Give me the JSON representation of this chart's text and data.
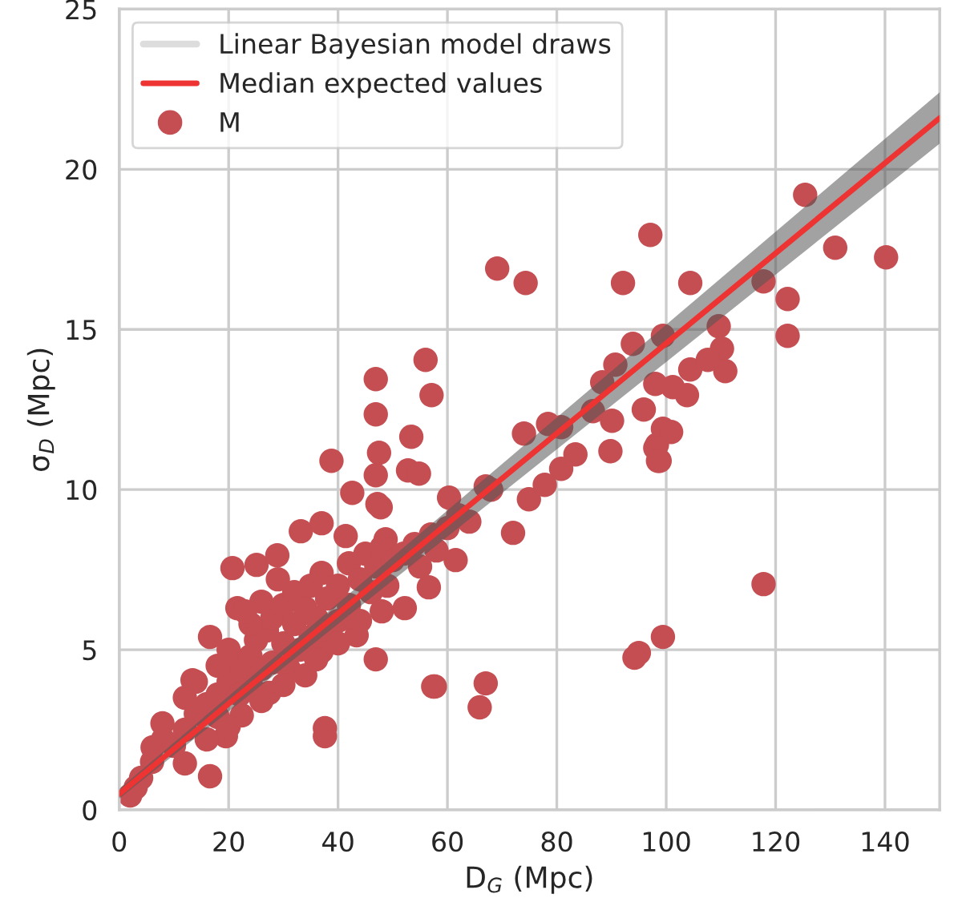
{
  "chart_data": {
    "type": "scatter",
    "xlabel": "D$_{G}$ (Mpc)",
    "ylabel": "σ$_{D}$ (Mpc)",
    "xlim": [
      0,
      150
    ],
    "ylim": [
      0,
      25
    ],
    "xticks": [
      0,
      20,
      40,
      60,
      80,
      100,
      120,
      140
    ],
    "yticks": [
      0,
      5,
      10,
      15,
      20,
      25
    ],
    "grid": true,
    "legend": "top left",
    "series": [
      {
        "name": "Linear Bayesian model draws",
        "type": "line",
        "color": "#555555",
        "x": [
          0,
          150
        ],
        "values": [
          null,
          null
        ],
        "lower": [
          0.35,
          20.8
        ],
        "upper": [
          0.65,
          22.4
        ]
      },
      {
        "name": "Median expected values",
        "type": "line",
        "color": "#ee3333",
        "x": [
          0,
          150
        ],
        "values": [
          0.5,
          21.6
        ]
      },
      {
        "name": "M",
        "color": "#c44e52",
        "marker": "circle",
        "x": [
          69.1,
          74.3,
          97.1,
          92.1,
          104.4,
          125.4,
          130.9,
          140.2,
          117.8,
          122.2,
          122.2,
          117.8,
          99.4,
          95,
          94.2,
          57.7,
          67,
          65.9,
          37.6,
          37.6,
          38.8,
          46.9,
          56,
          46.9,
          57.1,
          53.4,
          47.5,
          52.8,
          54.8,
          46.9,
          42.6,
          47.8,
          74,
          78.4,
          80.8,
          86.6,
          83.4,
          80.8,
          89.8,
          90.1,
          88.3,
          90.7,
          93.9,
          99.4,
          95.9,
          98,
          98.3,
          98.8,
          60.3,
          67,
          72,
          74.9,
          77.8,
          109.6,
          110.2,
          110.8,
          104.4,
          107.6,
          101.2,
          103.8,
          99.4,
          100.9,
          98,
          98.5,
          47.2,
          33.2,
          37,
          41.4,
          20.7,
          25.1,
          28.9,
          16.6,
          21.6,
          46.9,
          57.4,
          13.4,
          7.9,
          6.1,
          2,
          16.6,
          12,
          61.5,
          56.6,
          52.2,
          48.7,
          43.4,
          37,
          27.4,
          22.4,
          19.5,
          10,
          12,
          14,
          16,
          18,
          18,
          20,
          22,
          22,
          24,
          24,
          25,
          26,
          27,
          28,
          28,
          30,
          30,
          31,
          32,
          32,
          33,
          34,
          35,
          35,
          36,
          37,
          38,
          38,
          40,
          40,
          42,
          42,
          44,
          45,
          46,
          47,
          48,
          49,
          50,
          52,
          54,
          55,
          57,
          58,
          60,
          62,
          64,
          68,
          8,
          6,
          4,
          3,
          12,
          14,
          18,
          20,
          24,
          26,
          29,
          23,
          16,
          20,
          26,
          30,
          34,
          36,
          40,
          44,
          48
        ],
        "values": [
          16.9,
          16.45,
          17.95,
          16.45,
          16.45,
          19.2,
          17.55,
          17.25,
          16.5,
          15.95,
          14.8,
          7.05,
          5.4,
          4.9,
          4.75,
          3.85,
          3.95,
          3.2,
          2.55,
          2.3,
          10.9,
          13.45,
          14.05,
          12.35,
          12.95,
          11.65,
          11.15,
          10.6,
          10.5,
          10.45,
          9.9,
          9.45,
          11.75,
          12.05,
          11.95,
          12.45,
          11.1,
          10.65,
          11.2,
          12.15,
          13.35,
          13.9,
          14.55,
          14.8,
          12.5,
          13.3,
          11.4,
          10.9,
          9.75,
          10.1,
          8.65,
          9.7,
          10.15,
          15.1,
          14.4,
          13.7,
          13.75,
          14.05,
          13.2,
          12.95,
          11.9,
          11.8,
          11.3,
          10.9,
          9.55,
          8.7,
          8.95,
          8.55,
          7.55,
          7.65,
          7.95,
          5.4,
          6.3,
          4.7,
          3.85,
          4.05,
          2.7,
          1.95,
          0.45,
          1.05,
          1.45,
          7.8,
          6.95,
          6.3,
          8.45,
          5.45,
          4.95,
          3.65,
          2.95,
          2.3,
          2.0,
          2.5,
          3.0,
          3.3,
          3.6,
          2.9,
          4.0,
          4.5,
          3.6,
          4.8,
          4.0,
          5.3,
          4.4,
          5.6,
          4.6,
          6.0,
          5.2,
          6.4,
          4.4,
          5.8,
          6.8,
          5.0,
          6.3,
          7.0,
          5.4,
          6.0,
          7.4,
          5.6,
          6.6,
          7.0,
          5.9,
          7.7,
          6.4,
          7.2,
          8.0,
          6.8,
          7.6,
          8.2,
          7.0,
          7.8,
          8.0,
          8.3,
          7.6,
          8.6,
          8.1,
          8.8,
          9.2,
          9.0,
          10.0,
          2.2,
          1.5,
          1.0,
          0.7,
          3.5,
          4.0,
          4.5,
          5.0,
          5.8,
          6.5,
          7.2,
          6.2,
          2.2,
          2.6,
          3.4,
          3.9,
          4.2,
          4.7,
          5.2,
          5.9,
          6.2
        ]
      }
    ]
  }
}
